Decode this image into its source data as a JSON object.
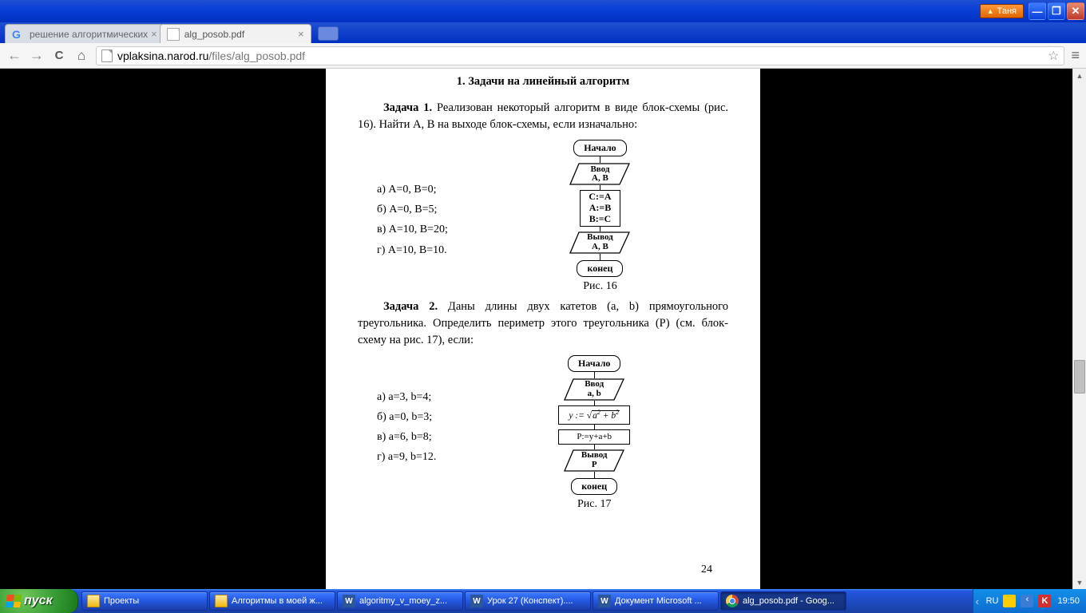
{
  "window": {
    "user_button": "Таня",
    "min_glyph": "—",
    "max_glyph": "❐",
    "close_glyph": "✕"
  },
  "tabs": {
    "tab1_title": "решение алгоритмических",
    "tab2_title": "alg_posob.pdf"
  },
  "toolbar": {
    "url_domain": "vplaksina.narod.ru",
    "url_path": "/files/alg_posob.pdf"
  },
  "document": {
    "section_title": "1. Задачи на линейный алгоритм",
    "task1_label": "Задача 1.",
    "task1_text1": " Реализован некоторый алгоритм в виде блок-схемы (рис. 16). Найти A, B на выходе блок-схемы, если изначально:",
    "task1_opts": {
      "a": "а) A=0,   B=0;",
      "b": "б) A=0,   B=5;",
      "v": "в) A=10,   B=20;",
      "g": "г) A=10,   B=10."
    },
    "flow1": {
      "start": "Начало",
      "input": "Ввод\nA, B",
      "process": "C:=A\nA:=B\nB:=C",
      "output": "Вывод\nA, B",
      "end": "конец",
      "caption": "Рис. 16"
    },
    "task2_label": "Задача 2.",
    "task2_text": " Даны длины двух катетов (a, b) прямоугольного треугольника. Определить периметр этого треугольника (P) (см. блок-схему на рис. 17), если:",
    "task2_opts": {
      "a": "а) a=3,   b=4;",
      "b": "б) a=0,   b=3;",
      "v": "в) a=6,   b=8;",
      "g": "г) a=9,   b=12."
    },
    "flow2": {
      "start": "Начало",
      "input": "Ввод\na, b",
      "proc2": "P:=y+a+b",
      "output": "Вывод\nP",
      "end": "конец",
      "caption": "Рис. 17"
    },
    "page_number": "24"
  },
  "taskbar": {
    "start": "пуск",
    "items": [
      {
        "icon": "folder",
        "text": "Проекты"
      },
      {
        "icon": "folder",
        "text": "Алгоритмы в моей ж..."
      },
      {
        "icon": "word",
        "text": "algoritmy_v_moey_z..."
      },
      {
        "icon": "word",
        "text": "Урок 27 (Конспект)...."
      },
      {
        "icon": "word",
        "text": "Документ Microsoft ..."
      },
      {
        "icon": "chrome",
        "text": "alg_posob.pdf - Goog...",
        "active": true
      }
    ],
    "lang": "RU",
    "clock": "19:50"
  },
  "colors": {
    "xp_blue": "#1941a5",
    "page_bg": "#ffffff",
    "content_bg": "#000000"
  }
}
